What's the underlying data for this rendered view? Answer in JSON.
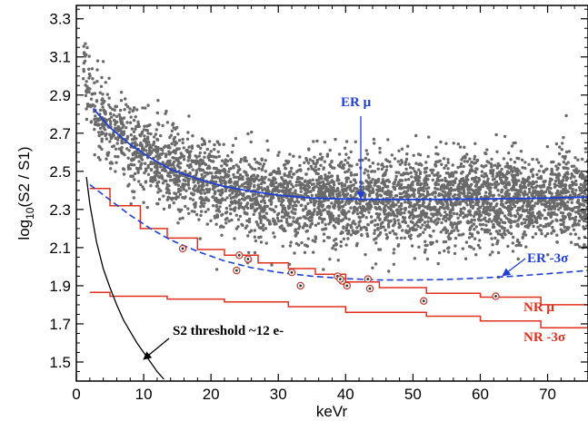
{
  "chart_data": {
    "type": "scatter",
    "title": "",
    "xlabel": "keVr",
    "ylabel_main": "log",
    "ylabel_sub": "10",
    "ylabel_rest": "(S2 / S1)",
    "xlim": [
      0,
      76
    ],
    "ylim": [
      1.4,
      3.37
    ],
    "xticks": [
      0,
      10,
      20,
      30,
      40,
      50,
      60,
      70
    ],
    "yticks": [
      1.5,
      1.7,
      1.9,
      2.1,
      2.3,
      2.5,
      2.7,
      2.9,
      3.1,
      3.3
    ],
    "xtick_labels": [
      "0",
      "10",
      "20",
      "30",
      "40",
      "50",
      "60",
      "70"
    ],
    "ytick_labels": [
      "1.5",
      "1.7",
      "1.9",
      "2.1",
      "2.3",
      "2.5",
      "2.7",
      "2.9",
      "3.1",
      "3.3"
    ],
    "grid": false,
    "colors": {
      "scatter": "#6a6a6a",
      "er": "#1f3fd6",
      "nr": "#e0301e",
      "threshold": "#000000",
      "candidate": "#c0392b"
    },
    "er_mu_curve": {
      "name": "ER μ",
      "x": [
        2.5,
        5,
        8,
        11,
        14,
        18,
        22,
        26,
        30,
        35,
        40,
        45,
        50,
        55,
        60,
        65,
        70,
        76
      ],
      "y": [
        2.83,
        2.73,
        2.64,
        2.57,
        2.51,
        2.46,
        2.42,
        2.395,
        2.375,
        2.36,
        2.355,
        2.352,
        2.352,
        2.353,
        2.355,
        2.357,
        2.36,
        2.365
      ]
    },
    "er_minus3sigma_curve": {
      "name": "ER -3σ",
      "x": [
        2,
        5,
        8,
        11,
        14,
        18,
        22,
        26,
        30,
        35,
        40,
        45,
        50,
        55,
        60,
        65,
        70,
        76
      ],
      "y": [
        2.43,
        2.35,
        2.27,
        2.2,
        2.14,
        2.08,
        2.03,
        1.995,
        1.97,
        1.95,
        1.937,
        1.93,
        1.93,
        1.933,
        1.94,
        1.95,
        1.963,
        1.98
      ]
    },
    "nr_mu_steps": {
      "name": "NR μ",
      "edges": [
        2,
        5,
        9.5,
        13.5,
        18,
        22,
        27,
        31.5,
        35.5,
        40,
        45,
        52,
        60,
        69,
        76
      ],
      "y": [
        2.41,
        2.32,
        2.2,
        2.15,
        2.09,
        2.06,
        2.02,
        1.99,
        1.96,
        1.92,
        1.89,
        1.86,
        1.84,
        1.8
      ]
    },
    "nr_minus3sigma_steps": {
      "name": "NR -3σ",
      "edges": [
        2,
        5,
        13.5,
        22,
        31.5,
        40,
        52,
        60,
        69,
        76
      ],
      "y": [
        1.865,
        1.845,
        1.83,
        1.815,
        1.79,
        1.76,
        1.74,
        1.715,
        1.68
      ]
    },
    "threshold_curve": {
      "name": "S2 threshold ~12 e-",
      "x": [
        1.5,
        2,
        3,
        4,
        5,
        6,
        7,
        8,
        9,
        10,
        11,
        12,
        13
      ],
      "y": [
        2.47,
        2.33,
        2.13,
        1.99,
        1.89,
        1.8,
        1.72,
        1.66,
        1.6,
        1.55,
        1.5,
        1.45,
        1.41
      ]
    },
    "candidate_events": {
      "x": [
        15.8,
        24.2,
        25.5,
        23.8,
        32.0,
        33.3,
        38.8,
        39.5,
        39.2,
        40.2,
        43.3,
        43.6,
        51.6,
        62.3
      ],
      "y": [
        2.095,
        2.06,
        2.04,
        1.98,
        1.97,
        1.9,
        1.95,
        1.925,
        1.935,
        1.9,
        1.935,
        1.885,
        1.82,
        1.845
      ]
    },
    "annotations": {
      "er_mu": "ER μ",
      "er_minus3sigma": "ER -3σ",
      "nr_mu": "NR μ",
      "nr_minus3sigma": "NR -3σ",
      "threshold": "S2 threshold ~12 e-"
    }
  }
}
